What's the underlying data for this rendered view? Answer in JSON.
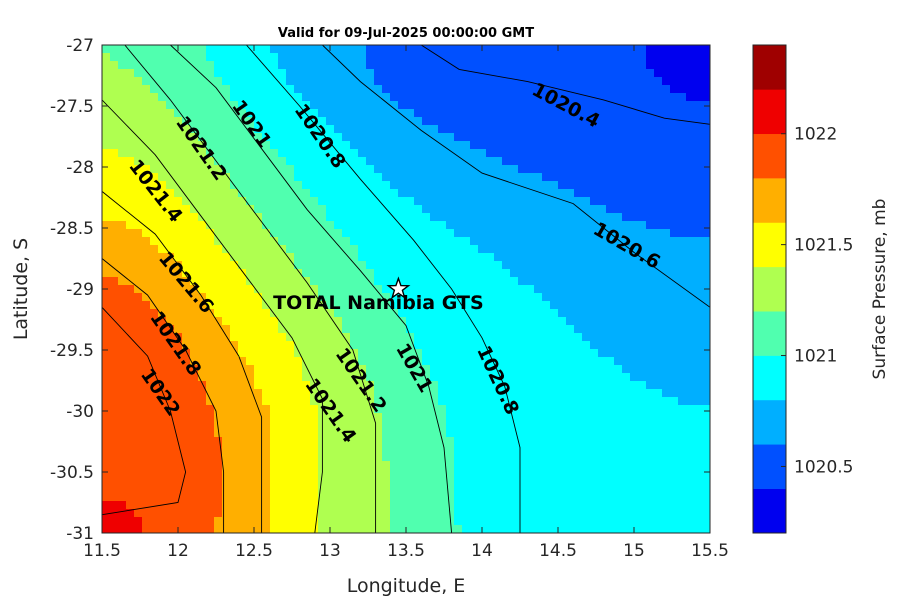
{
  "chart_data": {
    "type": "contour",
    "title": "Valid for 09-Jul-2025 00:00:00 GMT",
    "xlabel": "Longitude, E",
    "ylabel": "Latitude, S",
    "xlim": [
      11.5,
      15.5
    ],
    "ylim": [
      -31,
      -27
    ],
    "xticks": [
      "11.5",
      "12",
      "12.5",
      "13",
      "13.5",
      "14",
      "14.5",
      "15",
      "15.5"
    ],
    "yticks": [
      "-27",
      "-27.5",
      "-28",
      "-28.5",
      "-29",
      "-29.5",
      "-30",
      "-30.5",
      "-31"
    ],
    "levels": [
      1020.2,
      1020.4,
      1020.6,
      1020.8,
      1021.0,
      1021.2,
      1021.4,
      1021.6,
      1021.8,
      1022.0,
      1022.2
    ],
    "band_colors": [
      "#00009f",
      "#0000ef",
      "#0050ff",
      "#00afff",
      "#00ffff",
      "#50ffaf",
      "#afff50",
      "#ffff00",
      "#ffaf00",
      "#ff5000",
      "#ef0000",
      "#9f0000"
    ],
    "isolines": [
      {
        "level": 1020.4,
        "points": [
          [
            13.6,
            -27
          ],
          [
            13.85,
            -27.2
          ],
          [
            14.3,
            -27.3
          ],
          [
            14.8,
            -27.45
          ],
          [
            15.2,
            -27.6
          ],
          [
            15.5,
            -27.65
          ]
        ]
      },
      {
        "level": 1020.6,
        "points": [
          [
            12.95,
            -27
          ],
          [
            13.2,
            -27.3
          ],
          [
            13.6,
            -27.7
          ],
          [
            14.0,
            -28.05
          ],
          [
            14.6,
            -28.3
          ],
          [
            15.0,
            -28.7
          ],
          [
            15.5,
            -29.15
          ]
        ]
      },
      {
        "level": 1020.8,
        "points": [
          [
            12.45,
            -27
          ],
          [
            12.8,
            -27.5
          ],
          [
            13.2,
            -28.1
          ],
          [
            13.55,
            -28.6
          ],
          [
            13.8,
            -29.0
          ],
          [
            14.0,
            -29.4
          ],
          [
            14.15,
            -29.8
          ],
          [
            14.25,
            -30.3
          ],
          [
            14.25,
            -31
          ]
        ]
      },
      {
        "level": 1021.0,
        "points": [
          [
            11.95,
            -27
          ],
          [
            12.25,
            -27.35
          ],
          [
            12.55,
            -27.85
          ],
          [
            12.85,
            -28.35
          ],
          [
            13.2,
            -28.85
          ],
          [
            13.5,
            -29.3
          ],
          [
            13.65,
            -29.8
          ],
          [
            13.75,
            -30.3
          ],
          [
            13.8,
            -31
          ]
        ]
      },
      {
        "level": 1021.2,
        "points": [
          [
            11.65,
            -27
          ],
          [
            11.95,
            -27.45
          ],
          [
            12.25,
            -27.95
          ],
          [
            12.55,
            -28.45
          ],
          [
            12.85,
            -28.95
          ],
          [
            13.15,
            -29.5
          ],
          [
            13.3,
            -30.1
          ],
          [
            13.3,
            -30.6
          ],
          [
            13.3,
            -31
          ]
        ]
      },
      {
        "level": 1021.4,
        "points": [
          [
            11.5,
            -27.45
          ],
          [
            11.85,
            -27.9
          ],
          [
            12.15,
            -28.4
          ],
          [
            12.45,
            -28.9
          ],
          [
            12.75,
            -29.4
          ],
          [
            12.95,
            -29.9
          ],
          [
            12.95,
            -30.5
          ],
          [
            12.9,
            -31
          ]
        ]
      },
      {
        "level": 1021.6,
        "points": [
          [
            11.5,
            -28.2
          ],
          [
            11.85,
            -28.55
          ],
          [
            12.15,
            -29.05
          ],
          [
            12.4,
            -29.55
          ],
          [
            12.55,
            -30.05
          ],
          [
            12.55,
            -30.6
          ],
          [
            12.55,
            -31
          ]
        ]
      },
      {
        "level": 1021.8,
        "points": [
          [
            11.5,
            -28.75
          ],
          [
            11.8,
            -29.05
          ],
          [
            12.05,
            -29.5
          ],
          [
            12.25,
            -30.0
          ],
          [
            12.3,
            -30.5
          ],
          [
            12.3,
            -31
          ]
        ]
      },
      {
        "level": 1022.0,
        "points": [
          [
            11.5,
            -29.15
          ],
          [
            11.8,
            -29.55
          ],
          [
            11.95,
            -30.0
          ],
          [
            12.05,
            -30.5
          ],
          [
            12.0,
            -30.75
          ],
          [
            11.75,
            -30.8
          ],
          [
            11.5,
            -30.85
          ]
        ]
      }
    ],
    "contour_labels": [
      {
        "text": "1020.4",
        "x": 14.55,
        "y": -27.5,
        "angle": 28
      },
      {
        "text": "1020.6",
        "x": 14.95,
        "y": -28.65,
        "angle": 30
      },
      {
        "text": "1020.8",
        "x": 12.93,
        "y": -27.75,
        "angle": 55
      },
      {
        "text": "1020.8",
        "x": 14.1,
        "y": -29.75,
        "angle": 65
      },
      {
        "text": "1021",
        "x": 12.48,
        "y": -27.65,
        "angle": 55
      },
      {
        "text": "1021",
        "x": 13.55,
        "y": -29.65,
        "angle": 60
      },
      {
        "text": "1021.2",
        "x": 12.15,
        "y": -27.85,
        "angle": 55
      },
      {
        "text": "1021.2",
        "x": 13.2,
        "y": -29.75,
        "angle": 55
      },
      {
        "text": "1021.4",
        "x": 11.85,
        "y": -28.2,
        "angle": 52
      },
      {
        "text": "1021.4",
        "x": 13.0,
        "y": -30.0,
        "angle": 55
      },
      {
        "text": "1021.6",
        "x": 12.05,
        "y": -28.95,
        "angle": 50
      },
      {
        "text": "1021.8",
        "x": 11.98,
        "y": -29.45,
        "angle": 55
      },
      {
        "text": "1022",
        "x": 11.88,
        "y": -29.85,
        "angle": 55
      }
    ],
    "site": {
      "name": "TOTAL Namibia GTS",
      "x": 13.45,
      "y": -29.0
    },
    "colorbar": {
      "label": "Surface Pressure, mb",
      "ticks": [
        "1020.5",
        "1021",
        "1021.5",
        "1022"
      ],
      "tick_values": [
        1020.5,
        1021.0,
        1021.5,
        1022.0
      ],
      "range": [
        1020.2,
        1022.4
      ]
    }
  }
}
